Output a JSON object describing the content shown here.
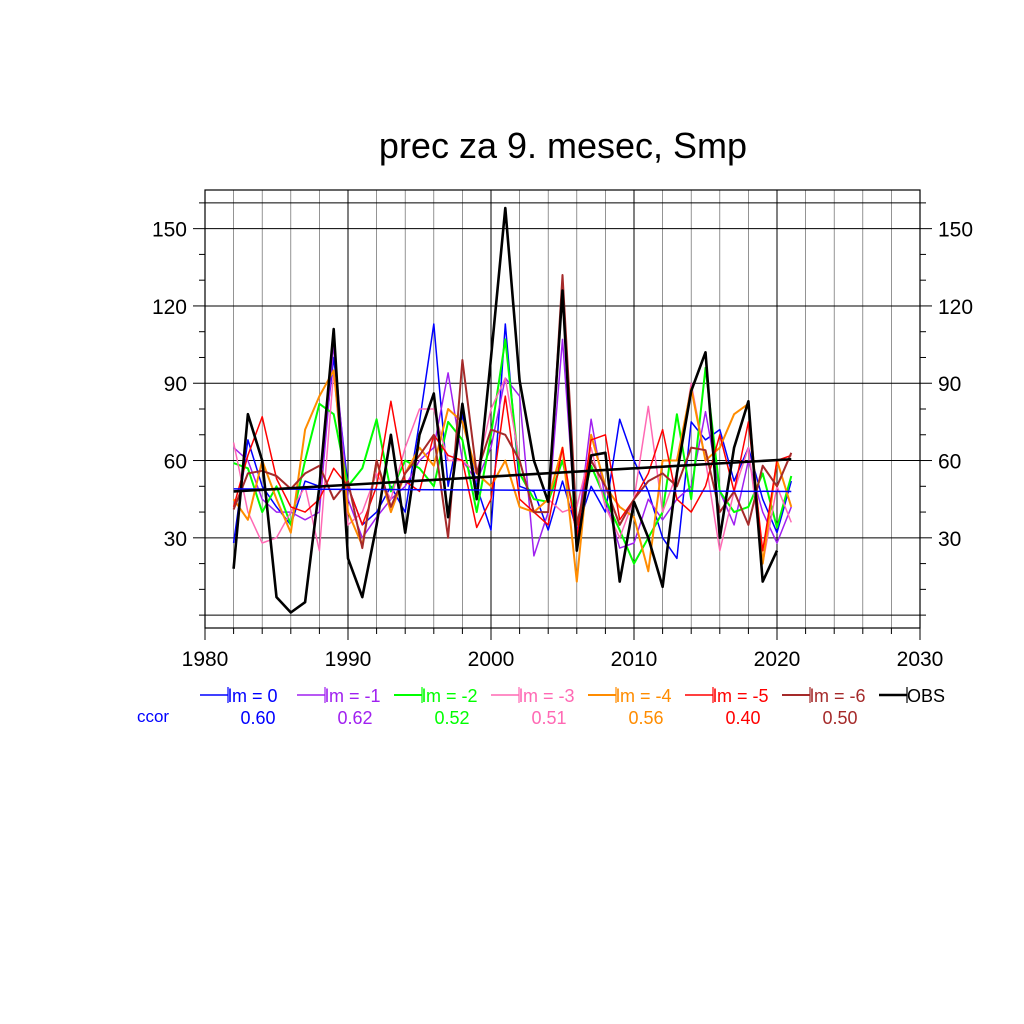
{
  "chart_data": {
    "type": "line",
    "title": "prec za 9. mesec, Smp",
    "xlabel": "",
    "ylabel": "",
    "xlim": [
      1980,
      2030
    ],
    "ylim": [
      -5,
      165
    ],
    "x_ticks": [
      1980,
      1990,
      2000,
      2010,
      2020,
      2030
    ],
    "x_tick_labels": [
      "1980",
      "1990",
      "2000",
      "2010",
      "2020",
      "2030"
    ],
    "y_ticks": [
      30,
      60,
      90,
      120,
      150
    ],
    "y_tick_labels": [
      "30",
      "60",
      "90",
      "120",
      "150"
    ],
    "grid": true,
    "legend_position": "bottom",
    "ccor_label": "ccor",
    "x": [
      1982,
      1983,
      1984,
      1985,
      1986,
      1987,
      1988,
      1989,
      1990,
      1991,
      1992,
      1993,
      1994,
      1995,
      1996,
      1997,
      1998,
      1999,
      2000,
      2001,
      2002,
      2003,
      2004,
      2005,
      2006,
      2007,
      2008,
      2009,
      2010,
      2011,
      2012,
      2013,
      2014,
      2015,
      2016,
      2017,
      2018,
      2019,
      2020,
      2021
    ],
    "series": [
      {
        "name": "lm = 0",
        "color": "#0000ff",
        "ccor": "0.60",
        "width": 1.5,
        "values": [
          28,
          68,
          50,
          42,
          35,
          52,
          50,
          100,
          50,
          35,
          40,
          50,
          40,
          75,
          113,
          50,
          78,
          50,
          33,
          113,
          50,
          48,
          33,
          52,
          33,
          50,
          40,
          76,
          60,
          48,
          30,
          22,
          75,
          68,
          72,
          52,
          65,
          45,
          32,
          52
        ],
        "trend": [
          49,
          48
        ]
      },
      {
        "name": "lm = -1",
        "color": "#a020f0",
        "ccor": "0.62",
        "width": 1.5,
        "values": [
          65,
          60,
          45,
          40,
          40,
          37,
          40,
          105,
          45,
          30,
          38,
          45,
          50,
          60,
          65,
          94,
          60,
          52,
          65,
          92,
          85,
          23,
          40,
          107,
          30,
          76,
          45,
          26,
          28,
          45,
          37,
          45,
          50,
          79,
          48,
          35,
          60,
          40,
          28,
          42
        ],
        "trend": []
      },
      {
        "name": "lm = -2",
        "color": "#00ff00",
        "ccor": "0.52",
        "width": 2,
        "values": [
          59,
          57,
          40,
          50,
          35,
          60,
          82,
          78,
          50,
          57,
          76,
          48,
          60,
          57,
          50,
          75,
          68,
          40,
          70,
          107,
          55,
          45,
          44,
          60,
          35,
          58,
          45,
          33,
          20,
          30,
          40,
          78,
          45,
          96,
          48,
          40,
          42,
          55,
          34,
          54
        ],
        "trend": []
      },
      {
        "name": "lm = -3",
        "color": "#ff69b4",
        "ccor": "0.51",
        "width": 1.5,
        "values": [
          67,
          40,
          28,
          30,
          40,
          50,
          25,
          95,
          35,
          40,
          55,
          45,
          65,
          80,
          80,
          60,
          60,
          55,
          80,
          92,
          60,
          40,
          45,
          40,
          42,
          65,
          42,
          30,
          45,
          81,
          40,
          55,
          90,
          60,
          25,
          48,
          65,
          20,
          50,
          36
        ],
        "trend": []
      },
      {
        "name": "lm = -4",
        "color": "#ff8c00",
        "ccor": "0.56",
        "width": 2,
        "values": [
          45,
          37,
          60,
          45,
          32,
          72,
          85,
          95,
          40,
          27,
          60,
          40,
          55,
          65,
          58,
          80,
          75,
          55,
          50,
          60,
          42,
          40,
          45,
          65,
          13,
          70,
          50,
          42,
          38,
          17,
          60,
          60,
          88,
          60,
          65,
          78,
          82,
          20,
          60,
          42
        ],
        "trend": []
      },
      {
        "name": "lm = -5",
        "color": "#ff0000",
        "ccor": "0.40",
        "width": 1.5,
        "values": [
          42,
          62,
          77,
          53,
          42,
          40,
          45,
          57,
          50,
          35,
          50,
          83,
          52,
          48,
          70,
          62,
          60,
          34,
          45,
          85,
          45,
          40,
          35,
          65,
          30,
          68,
          70,
          37,
          45,
          55,
          72,
          45,
          40,
          50,
          70,
          48,
          75,
          25,
          60,
          62
        ],
        "trend": []
      },
      {
        "name": "lm = -6",
        "color": "#a52a2a",
        "ccor": "0.50",
        "width": 2,
        "values": [
          41,
          55,
          56,
          54,
          49,
          55,
          58,
          45,
          52,
          26,
          60,
          42,
          55,
          62,
          70,
          30,
          99,
          55,
          72,
          70,
          60,
          40,
          40,
          132,
          35,
          60,
          50,
          35,
          45,
          52,
          55,
          50,
          65,
          64,
          40,
          48,
          35,
          58,
          50,
          63
        ],
        "trend": []
      },
      {
        "name": "OBS",
        "color": "#000000",
        "ccor": "",
        "width": 2.6,
        "values": [
          18,
          78,
          60,
          7,
          1,
          5,
          50,
          111,
          22,
          7,
          35,
          70,
          32,
          70,
          86,
          38,
          82,
          45,
          100,
          158,
          91,
          60,
          44,
          126,
          25,
          62,
          63,
          13,
          44,
          30,
          11,
          55,
          87,
          102,
          30,
          65,
          83,
          13,
          25,
          null
        ],
        "trend": [
          48,
          60.5
        ]
      }
    ]
  }
}
